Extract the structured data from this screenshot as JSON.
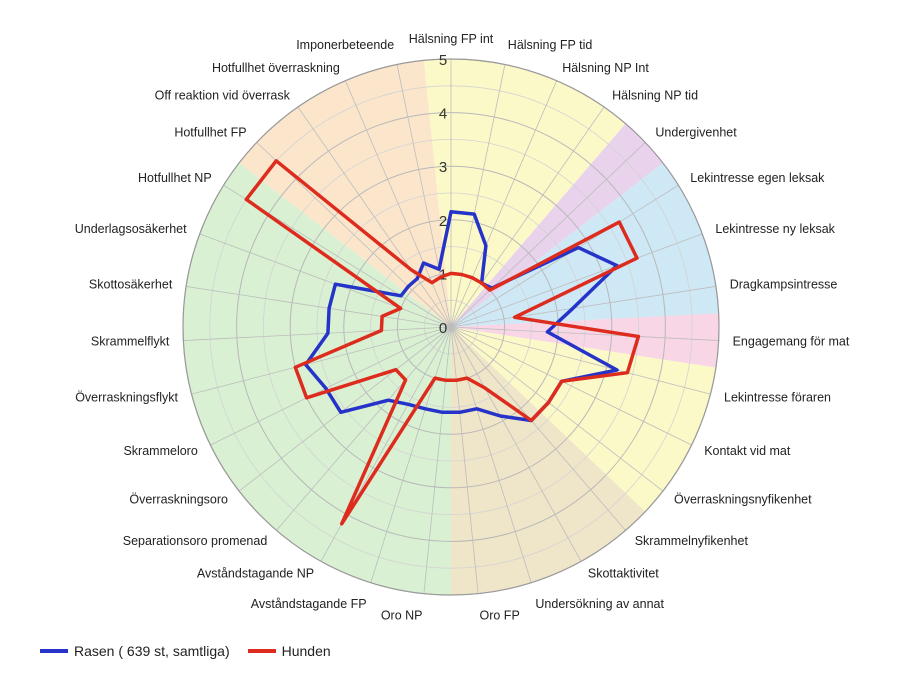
{
  "chart_data": {
    "type": "radar",
    "r_ticks": [
      "0",
      "1",
      "2",
      "3",
      "4",
      "5"
    ],
    "rlim": [
      0,
      5
    ],
    "categories": [
      "Hälsning FP int",
      "Hälsning FP tid",
      "Hälsning NP Int",
      "Hälsning NP tid",
      "Undergivenhet",
      "Lekintresse egen leksak",
      "Lekintresse ny leksak",
      "Dragkampsintresse",
      "Engagemang för mat",
      "Lekintresse föraren",
      "Kontakt vid mat",
      "Överraskningsnyfikenhet",
      "Skrammelnyfikenhet",
      "Skottaktivitet",
      "Undersökning av annat",
      "Oro FP",
      "Oro NP",
      "Avståndstagande FP",
      "Avståndstagande NP",
      "Separationsoro promenad",
      "Överraskningsoro",
      "Skrammeloro",
      "Överraskningsflykt",
      "Skrammelflykt",
      "Skottosäkerhet",
      "Underlagsosäkerhet",
      "Hotfullhet NP",
      "Hotfullhet FP",
      "Off reaktion vid överrask",
      "Hotfullhet överraskning",
      "Imponerbeteende"
    ],
    "series": [
      {
        "name": "Rasen ( 639 st, samtliga)",
        "color": "#2633c9",
        "values": [
          2.15,
          2.15,
          1.65,
          1.0,
          1.05,
          2.8,
          3.3,
          2.3,
          1.8,
          3.2,
          2.3,
          2.3,
          2.3,
          1.9,
          1.6,
          1.6,
          1.6,
          1.6,
          1.65,
          1.8,
          2.6,
          2.6,
          2.8,
          2.3,
          2.3,
          2.3,
          1.1,
          1.1,
          1.1,
          1.3,
          1.1
        ]
      },
      {
        "name": "Hunden",
        "color": "#dd2c1e",
        "values": [
          1.0,
          1.0,
          1.0,
          1.0,
          1.0,
          3.7,
          3.7,
          1.2,
          3.5,
          3.4,
          2.3,
          2.3,
          2.3,
          1.3,
          1.0,
          1.0,
          1.0,
          1.0,
          4.2,
          1.3,
          1.3,
          3.0,
          3.0,
          1.3,
          1.3,
          1.0,
          4.5,
          4.5,
          1.3,
          0.9,
          0.95
        ]
      }
    ],
    "sectors": [
      {
        "from": 0,
        "to": 3,
        "color": "#fcf9c8"
      },
      {
        "from": 4,
        "to": 4,
        "color": "#e8d2ec"
      },
      {
        "from": 5,
        "to": 7,
        "color": "#cfe8f6"
      },
      {
        "from": 8,
        "to": 8,
        "color": "#f8d6e6"
      },
      {
        "from": 9,
        "to": 11,
        "color": "#fcf9c8"
      },
      {
        "from": 12,
        "to": 15,
        "color": "#efe5c8"
      },
      {
        "from": 16,
        "to": 26,
        "color": "#d9f0d3"
      },
      {
        "from": 27,
        "to": 30,
        "color": "#fbe6cc"
      }
    ],
    "grid": true,
    "legend_position": "bottom-left"
  }
}
